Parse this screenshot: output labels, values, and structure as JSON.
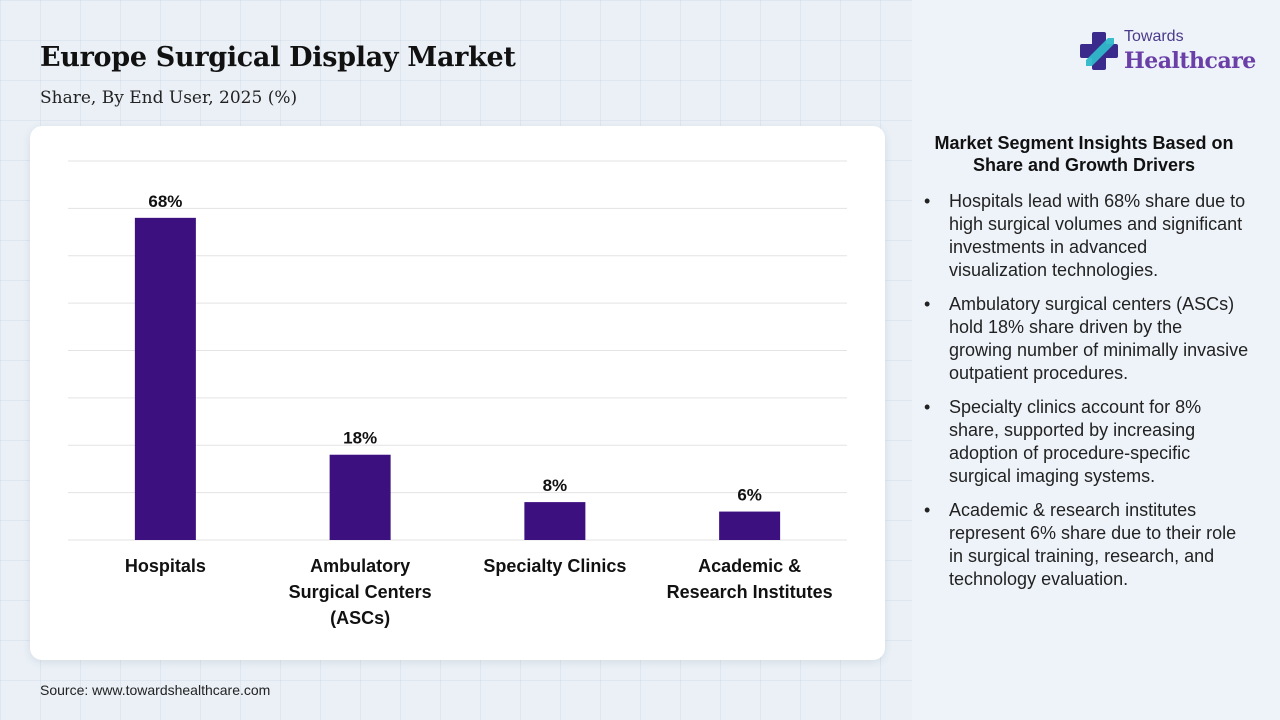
{
  "header": {
    "title": "Europe Surgical Display Market",
    "subtitle": "Share, By End User, 2025 (%)"
  },
  "logo": {
    "top_text": "Towards",
    "main_text": "Healthcare",
    "icon": "plus-cross-logo-icon",
    "colors": {
      "cross_dark": "#3a2a8c",
      "cross_light": "#2fb8c9",
      "text": "#6a3fa8"
    }
  },
  "chart_data": {
    "type": "bar",
    "categories": [
      [
        "Hospitals"
      ],
      [
        "Ambulatory",
        "Surgical Centers",
        "(ASCs)"
      ],
      [
        "Specialty Clinics"
      ],
      [
        "Academic &",
        "Research Institutes"
      ]
    ],
    "values": [
      68,
      18,
      8,
      6
    ],
    "data_labels": [
      "68%",
      "18%",
      "8%",
      "6%"
    ],
    "ylim": [
      0,
      80
    ],
    "grid": true,
    "bar_color": "#3d1080"
  },
  "insights": {
    "title": "Market Segment Insights Based on Share and Growth Drivers",
    "bullet_char": "•",
    "items": [
      "Hospitals lead with 68% share due to high surgical volumes and significant investments in advanced visualization technologies.",
      "Ambulatory surgical centers (ASCs) hold 18% share driven by the growing number of minimally invasive outpatient procedures.",
      "Specialty clinics account for 8% share, supported by increasing adoption of procedure-specific surgical imaging systems.",
      "Academic & research institutes represent 6% share due to their role in surgical training, research, and technology evaluation."
    ]
  },
  "footer": {
    "source": "Source: www.towardshealthcare.com"
  }
}
